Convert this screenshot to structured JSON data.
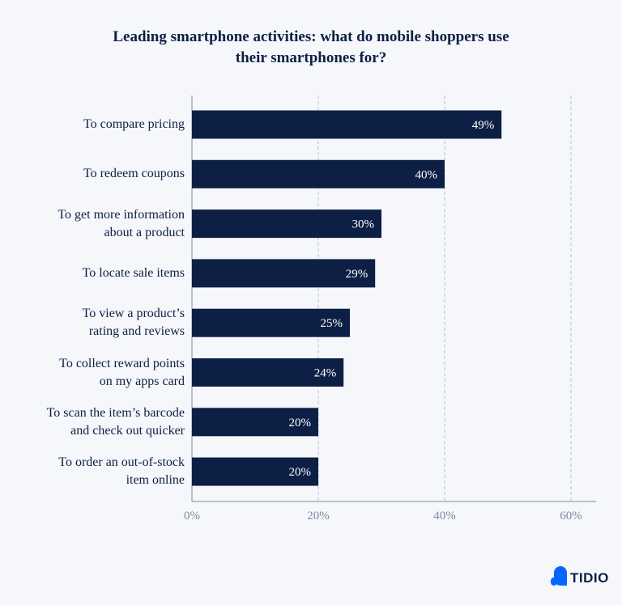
{
  "chart_data": {
    "type": "bar",
    "orientation": "horizontal",
    "title": "Leading smartphone activities: what do mobile shoppers use their smartphones for?",
    "categories": [
      "To compare pricing",
      "To redeem coupons",
      "To get more information\nabout a product",
      "To locate sale items",
      "To view a product’s\nrating and reviews",
      "To collect reward points\non my apps card",
      "To scan the item’s barcode\nand check out quicker",
      "To order an out-of-stock\nitem online"
    ],
    "values": [
      49,
      40,
      30,
      29,
      25,
      24,
      20,
      20
    ],
    "value_labels": [
      "49%",
      "40%",
      "30%",
      "29%",
      "25%",
      "24%",
      "20%",
      "20%"
    ],
    "color": "#0e1f45",
    "xlim": [
      0,
      64
    ],
    "xticks": [
      {
        "value": 0,
        "label": "0%"
      },
      {
        "value": 20,
        "label": "20%"
      },
      {
        "value": 40,
        "label": "40%"
      },
      {
        "value": 60,
        "label": "60%"
      }
    ],
    "grid": true
  },
  "brand": "TIDIO"
}
